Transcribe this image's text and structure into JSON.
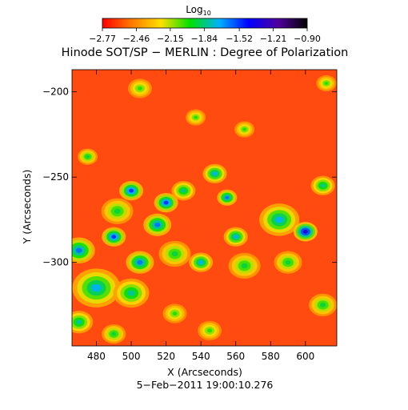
{
  "chart_data": {
    "type": "heatmap",
    "title": "Hinode SOT/SP − MERLIN : Degree of Polarization",
    "subtitle": "5−Feb−2011 19:00:10.276",
    "xlabel": "X (Arcseconds)",
    "ylabel": "Y (Arcseconds)",
    "xlim": [
      466,
      618
    ],
    "ylim": [
      -349,
      -187
    ],
    "x_ticks": [
      480,
      500,
      520,
      540,
      560,
      580,
      600
    ],
    "x_tick_labels": [
      "480",
      "500",
      "520",
      "540",
      "560",
      "580",
      "600"
    ],
    "y_ticks": [
      -200,
      -250,
      -300
    ],
    "y_tick_labels": [
      "−200",
      "−250",
      "−300"
    ],
    "colorbar": {
      "label": "Log",
      "label_sub": "10",
      "range": [
        -2.77,
        -0.9
      ],
      "tick_values": [
        -2.77,
        -2.46,
        -2.15,
        -1.84,
        -1.52,
        -1.21,
        -0.9
      ],
      "tick_labels": [
        "−2.77",
        "−2.46",
        "−2.15",
        "−1.84",
        "−1.52",
        "−1.21",
        "−0.90"
      ],
      "colormap": [
        "#ff0000",
        "#ff7a00",
        "#ffe000",
        "#00e000",
        "#00b0ff",
        "#0000ff",
        "#5000a0",
        "#000000"
      ]
    },
    "background_color": "#ff4a10",
    "features": [
      {
        "x": 480,
        "y": -315,
        "r": 12,
        "value": -1.7
      },
      {
        "x": 470,
        "y": -293,
        "r": 8,
        "value": -1.6
      },
      {
        "x": 492,
        "y": -270,
        "r": 8,
        "value": -1.9
      },
      {
        "x": 500,
        "y": -258,
        "r": 6,
        "value": -1.5
      },
      {
        "x": 490,
        "y": -285,
        "r": 6,
        "value": -1.5
      },
      {
        "x": 505,
        "y": -300,
        "r": 7,
        "value": -1.6
      },
      {
        "x": 500,
        "y": -318,
        "r": 9,
        "value": -1.8
      },
      {
        "x": 515,
        "y": -278,
        "r": 7,
        "value": -1.6
      },
      {
        "x": 520,
        "y": -265,
        "r": 6,
        "value": -1.5
      },
      {
        "x": 530,
        "y": -258,
        "r": 6,
        "value": -1.8
      },
      {
        "x": 525,
        "y": -295,
        "r": 8,
        "value": -1.9
      },
      {
        "x": 540,
        "y": -300,
        "r": 6,
        "value": -1.7
      },
      {
        "x": 548,
        "y": -248,
        "r": 6,
        "value": -1.7
      },
      {
        "x": 555,
        "y": -262,
        "r": 5,
        "value": -1.6
      },
      {
        "x": 560,
        "y": -285,
        "r": 6,
        "value": -1.7
      },
      {
        "x": 565,
        "y": -302,
        "r": 8,
        "value": -1.9
      },
      {
        "x": 585,
        "y": -275,
        "r": 10,
        "value": -1.7
      },
      {
        "x": 600,
        "y": -282,
        "r": 6,
        "value": -1.3
      },
      {
        "x": 610,
        "y": -255,
        "r": 6,
        "value": -1.8
      },
      {
        "x": 590,
        "y": -300,
        "r": 7,
        "value": -1.9
      },
      {
        "x": 470,
        "y": -335,
        "r": 7,
        "value": -1.8
      },
      {
        "x": 490,
        "y": -342,
        "r": 6,
        "value": -1.9
      },
      {
        "x": 525,
        "y": -330,
        "r": 6,
        "value": -2.0
      },
      {
        "x": 545,
        "y": -340,
        "r": 6,
        "value": -2.0
      },
      {
        "x": 505,
        "y": -198,
        "r": 6,
        "value": -2.0
      },
      {
        "x": 537,
        "y": -215,
        "r": 5,
        "value": -2.0
      },
      {
        "x": 565,
        "y": -222,
        "r": 5,
        "value": -2.0
      },
      {
        "x": 612,
        "y": -195,
        "r": 5,
        "value": -2.0
      },
      {
        "x": 475,
        "y": -238,
        "r": 5,
        "value": -1.9
      },
      {
        "x": 610,
        "y": -325,
        "r": 7,
        "value": -1.9
      }
    ]
  }
}
